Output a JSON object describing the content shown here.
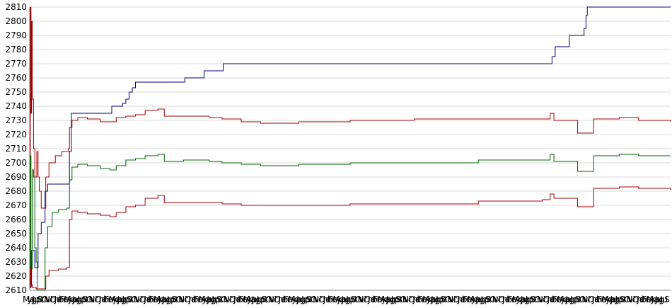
{
  "chart_data": {
    "type": "line",
    "title": "",
    "xlabel": "",
    "ylabel": "",
    "ylim": [
      2610,
      2810
    ],
    "grid": true,
    "legend": "none",
    "y_ticks": [
      "2610",
      "2620",
      "2630",
      "2640",
      "2650",
      "2660",
      "2670",
      "2680",
      "2690",
      "2700",
      "2710",
      "2720",
      "2730",
      "2740",
      "2750",
      "2760",
      "2770",
      "2780",
      "2790",
      "2800",
      "2810"
    ],
    "x_tick_labels": [
      "Ma",
      "yJu",
      "gS",
      "pO",
      "tN",
      "vDe",
      "cJa",
      "nFe",
      "bMa",
      "rAp",
      "yJu",
      "nJu",
      "gS",
      "pO",
      "tN",
      "vDe",
      "cJa",
      "nFe",
      "bMa",
      "rAp",
      "yJu",
      "nJu",
      "gS",
      "pO",
      "tN",
      "vDe",
      "cJa",
      "nFe",
      "bMa",
      "rAp",
      "yJu",
      "nJu",
      "gS",
      "pO",
      "tN",
      "vDe",
      "cJa",
      "nFe",
      "bMa",
      "rAp",
      "yJu",
      "nJu",
      "gS",
      "pO",
      "tN",
      "vDe",
      "cJa",
      "nFe",
      "bMa",
      "rAp",
      "yJu",
      "nJu",
      "gS",
      "pO",
      "tN",
      "vDe",
      "cJa",
      "nFe",
      "bMa",
      "rAp",
      "yJu",
      "nJu",
      "gS",
      "pO",
      "tN",
      "vDe",
      "cJa",
      "nFe",
      "bMa",
      "rAp",
      "yJu",
      "nJu",
      "gS",
      "pO",
      "tN",
      "vDe",
      "cJa",
      "nFe",
      "bMa",
      "rAp",
      "yJu",
      "nJu",
      "gS",
      "pO",
      "tN",
      "vDe",
      "cJa",
      "nFe",
      "bMa",
      "rAp",
      "yJu",
      "nJu",
      "gS",
      "pO",
      "tN",
      "vDe",
      "cJa",
      "nFe",
      "bMa",
      "rAp",
      "yJu",
      "nJu",
      "gS",
      "pO",
      "tN",
      "vDe",
      "cJa",
      "nFe",
      "bMa",
      "rAp",
      "yJu",
      "nJu",
      "gS",
      "pO",
      "tN",
      "vDe",
      "cJa",
      "nFe",
      "bMa",
      "rAp",
      "yJu",
      "nJu",
      "gS",
      "pO",
      "tN",
      "vDe",
      "cJa",
      "nFe",
      "bMa",
      "rAp",
      "yJu",
      "nJu",
      "gS",
      "pO",
      "tN",
      "vDe",
      "cJa",
      "nFe",
      "bMa",
      "rAp",
      "yJu",
      "nJu",
      "gS"
    ],
    "x_range": [
      0,
      1000
    ],
    "series": [
      {
        "color": "#000080",
        "values": [
          [
            0,
            2612
          ],
          [
            2,
            2613
          ],
          [
            3,
            2638
          ],
          [
            6,
            2638
          ],
          [
            8,
            2626
          ],
          [
            12,
            2626
          ],
          [
            13,
            2650
          ],
          [
            17,
            2650
          ],
          [
            18,
            2658
          ],
          [
            22,
            2658
          ],
          [
            24,
            2680
          ],
          [
            28,
            2685
          ],
          [
            60,
            2685
          ],
          [
            62,
            2708
          ],
          [
            65,
            2735
          ],
          [
            125,
            2735
          ],
          [
            128,
            2740
          ],
          [
            140,
            2740
          ],
          [
            145,
            2742
          ],
          [
            150,
            2745
          ],
          [
            155,
            2750
          ],
          [
            160,
            2753
          ],
          [
            165,
            2757
          ],
          [
            240,
            2757
          ],
          [
            242,
            2760
          ],
          [
            270,
            2760
          ],
          [
            272,
            2765
          ],
          [
            300,
            2765
          ],
          [
            302,
            2770
          ],
          [
            810,
            2770
          ],
          [
            815,
            2775
          ],
          [
            820,
            2782
          ],
          [
            840,
            2782
          ],
          [
            842,
            2790
          ],
          [
            860,
            2790
          ],
          [
            865,
            2795
          ],
          [
            868,
            2804
          ],
          [
            870,
            2810
          ],
          [
            1000,
            2810
          ]
        ]
      },
      {
        "color": "#a00000",
        "values": [
          [
            0,
            2612
          ],
          [
            1,
            2810
          ],
          [
            2,
            2735
          ],
          [
            3,
            2800
          ],
          [
            4,
            2745
          ],
          [
            6,
            2710
          ],
          [
            8,
            2690
          ],
          [
            10,
            2690
          ],
          [
            11,
            2708
          ],
          [
            13,
            2690
          ],
          [
            15,
            2680
          ],
          [
            18,
            2668
          ],
          [
            22,
            2668
          ],
          [
            25,
            2690
          ],
          [
            30,
            2700
          ],
          [
            40,
            2705
          ],
          [
            50,
            2708
          ],
          [
            60,
            2710
          ],
          [
            62,
            2725
          ],
          [
            66,
            2730
          ],
          [
            75,
            2732
          ],
          [
            90,
            2731
          ],
          [
            110,
            2729
          ],
          [
            125,
            2729
          ],
          [
            135,
            2732
          ],
          [
            150,
            2733
          ],
          [
            165,
            2734
          ],
          [
            180,
            2737
          ],
          [
            200,
            2738
          ],
          [
            210,
            2733
          ],
          [
            240,
            2733
          ],
          [
            280,
            2732
          ],
          [
            300,
            2731
          ],
          [
            330,
            2729
          ],
          [
            360,
            2728
          ],
          [
            420,
            2729
          ],
          [
            500,
            2730
          ],
          [
            600,
            2731
          ],
          [
            700,
            2731
          ],
          [
            780,
            2731
          ],
          [
            800,
            2731
          ],
          [
            812,
            2735
          ],
          [
            818,
            2730
          ],
          [
            850,
            2730
          ],
          [
            855,
            2721
          ],
          [
            870,
            2721
          ],
          [
            880,
            2731
          ],
          [
            920,
            2732
          ],
          [
            950,
            2730
          ],
          [
            1000,
            2729
          ]
        ]
      },
      {
        "color": "#006400",
        "values": [
          [
            0,
            2612
          ],
          [
            1,
            2705
          ],
          [
            2,
            2625
          ],
          [
            4,
            2695
          ],
          [
            6,
            2690
          ],
          [
            8,
            2640
          ],
          [
            10,
            2630
          ],
          [
            12,
            2610
          ],
          [
            20,
            2610
          ],
          [
            24,
            2640
          ],
          [
            28,
            2655
          ],
          [
            35,
            2665
          ],
          [
            45,
            2667
          ],
          [
            58,
            2668
          ],
          [
            62,
            2688
          ],
          [
            66,
            2697
          ],
          [
            75,
            2699
          ],
          [
            90,
            2698
          ],
          [
            110,
            2696
          ],
          [
            125,
            2695
          ],
          [
            135,
            2698
          ],
          [
            150,
            2702
          ],
          [
            165,
            2703
          ],
          [
            180,
            2705
          ],
          [
            200,
            2706
          ],
          [
            210,
            2701
          ],
          [
            240,
            2702
          ],
          [
            280,
            2701
          ],
          [
            300,
            2700
          ],
          [
            330,
            2699
          ],
          [
            360,
            2698
          ],
          [
            420,
            2699
          ],
          [
            500,
            2700
          ],
          [
            600,
            2700
          ],
          [
            700,
            2702
          ],
          [
            780,
            2702
          ],
          [
            800,
            2702
          ],
          [
            812,
            2706
          ],
          [
            818,
            2701
          ],
          [
            850,
            2701
          ],
          [
            855,
            2694
          ],
          [
            870,
            2694
          ],
          [
            880,
            2705
          ],
          [
            920,
            2706
          ],
          [
            950,
            2705
          ],
          [
            1000,
            2705
          ]
        ]
      },
      {
        "color": "#a00000",
        "values": [
          [
            0,
            2612
          ],
          [
            1,
            2626
          ],
          [
            2,
            2614
          ],
          [
            4,
            2612
          ],
          [
            10,
            2611
          ],
          [
            22,
            2611
          ],
          [
            25,
            2620
          ],
          [
            30,
            2624
          ],
          [
            45,
            2625
          ],
          [
            58,
            2626
          ],
          [
            62,
            2660
          ],
          [
            66,
            2666
          ],
          [
            75,
            2665
          ],
          [
            90,
            2664
          ],
          [
            110,
            2663
          ],
          [
            125,
            2662
          ],
          [
            135,
            2665
          ],
          [
            150,
            2669
          ],
          [
            165,
            2670
          ],
          [
            180,
            2675
          ],
          [
            200,
            2677
          ],
          [
            210,
            2672
          ],
          [
            240,
            2672
          ],
          [
            280,
            2672
          ],
          [
            300,
            2671
          ],
          [
            330,
            2670
          ],
          [
            360,
            2670
          ],
          [
            420,
            2670
          ],
          [
            500,
            2671
          ],
          [
            600,
            2671
          ],
          [
            700,
            2673
          ],
          [
            780,
            2673
          ],
          [
            800,
            2674
          ],
          [
            812,
            2678
          ],
          [
            818,
            2675
          ],
          [
            850,
            2675
          ],
          [
            855,
            2669
          ],
          [
            870,
            2669
          ],
          [
            880,
            2682
          ],
          [
            920,
            2683
          ],
          [
            950,
            2682
          ],
          [
            1000,
            2681
          ]
        ]
      }
    ]
  }
}
